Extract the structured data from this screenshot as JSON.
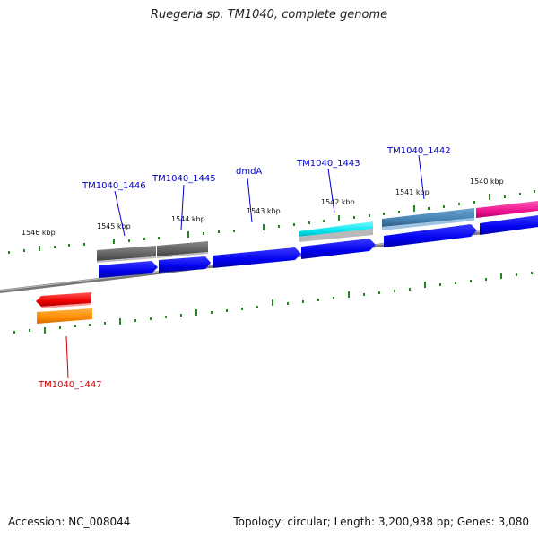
{
  "title": "Ruegeria sp. TM1040, complete genome",
  "footer": {
    "accession": "Accession: NC_008044",
    "summary": "Topology: circular; Length: 3,200,938 bp; Genes: 3,080"
  },
  "scale_labels": [
    "1546 kbp",
    "1545 kbp",
    "1544 kbp",
    "1543 kbp",
    "1542 kbp",
    "1541 kbp",
    "1540 kbp"
  ],
  "gene_labels": [
    {
      "text": "TM1040_1446",
      "color": "#0000cc"
    },
    {
      "text": "TM1040_1445",
      "color": "#0000cc"
    },
    {
      "text": "dmdA",
      "color": "#0000cc"
    },
    {
      "text": "TM1040_1443",
      "color": "#0000cc"
    },
    {
      "text": "TM1040_1442",
      "color": "#0000cc"
    },
    {
      "text": "TM1040_1447",
      "color": "#cc0000"
    }
  ],
  "colors": {
    "backbone": "#777777",
    "cds": "#0000ee",
    "gray_feature": "#666666",
    "cyan_feature": "#00e5ee",
    "steelblue_feature": "#4682b4",
    "magenta_feature": "#ee1090",
    "red_feature": "#ee0000",
    "orange_feature": "#ff8c00",
    "tick": "#1f8a1f"
  }
}
